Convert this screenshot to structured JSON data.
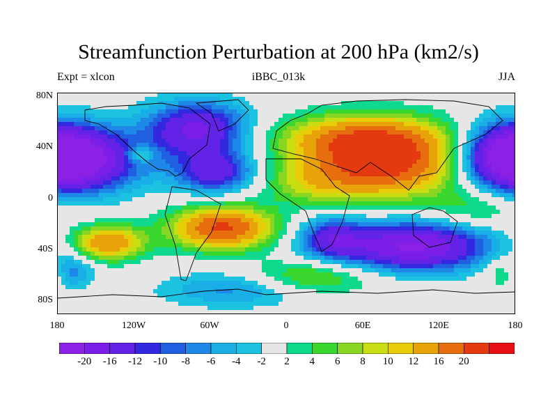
{
  "header": {
    "title": "Streamfunction Perturbation at 200 hPa (km2/s)",
    "left_label": "Expt = xlcon",
    "center_label": "iBBC_013k",
    "right_label": "JJA"
  },
  "map": {
    "y_ticks": [
      "80N",
      "40N",
      "0",
      "40S",
      "80S"
    ],
    "x_ticks": [
      "180",
      "120W",
      "60W",
      "0",
      "60E",
      "120E",
      "180"
    ],
    "background_color": "#e6e6e6"
  },
  "colorbar": {
    "colors": [
      "#8c21e6",
      "#7a1ee8",
      "#6323e6",
      "#3228e0",
      "#1f5fe0",
      "#1e88e6",
      "#1aaee6",
      "#1cc3e0",
      "#e6e6e6",
      "#0fd98c",
      "#3ad82e",
      "#88d622",
      "#c8dd12",
      "#e8cc0a",
      "#e8a20a",
      "#e66e0e",
      "#e33a12",
      "#e60f14"
    ],
    "labels": [
      "-20",
      "-16",
      "-12",
      "-10",
      "-8",
      "-6",
      "-4",
      "-2",
      "2",
      "4",
      "6",
      "8",
      "10",
      "12",
      "16",
      "20"
    ]
  },
  "chart_data": {
    "type": "heatmap",
    "title": "Streamfunction Perturbation at 200 hPa (km2/s)",
    "variable": "streamfunction perturbation",
    "units": "km2/s",
    "levels": [
      -20,
      -16,
      -12,
      -10,
      -8,
      -6,
      -4,
      -2,
      2,
      4,
      6,
      8,
      10,
      12,
      16,
      20
    ],
    "lon_range": [
      -180,
      180
    ],
    "lat_range": [
      -90,
      90
    ],
    "features": [
      {
        "lon": 75,
        "lat": 35,
        "amplitude": 24,
        "spread_lon": 45,
        "spread_lat": 20
      },
      {
        "lon": 55,
        "lat": 55,
        "amplitude": 9,
        "spread_lon": 45,
        "spread_lat": 12
      },
      {
        "lon": 20,
        "lat": 15,
        "amplitude": 5,
        "spread_lon": 30,
        "spread_lat": 12
      },
      {
        "lon": -165,
        "lat": 35,
        "amplitude": -21,
        "spread_lon": 35,
        "spread_lat": 18
      },
      {
        "lon": 175,
        "lat": 40,
        "amplitude": -16,
        "spread_lon": 25,
        "spread_lat": 18
      },
      {
        "lon": -70,
        "lat": 60,
        "amplitude": -17,
        "spread_lon": 28,
        "spread_lat": 16
      },
      {
        "lon": -55,
        "lat": 25,
        "amplitude": -14,
        "spread_lon": 22,
        "spread_lat": 12
      },
      {
        "lon": -115,
        "lat": 40,
        "amplitude": 7,
        "spread_lon": 8,
        "spread_lat": 5
      },
      {
        "lon": -50,
        "lat": -20,
        "amplitude": 21,
        "spread_lon": 28,
        "spread_lat": 12
      },
      {
        "lon": -140,
        "lat": -32,
        "amplitude": 16,
        "spread_lon": 20,
        "spread_lat": 10
      },
      {
        "lon": 100,
        "lat": -35,
        "amplitude": -21,
        "spread_lon": 42,
        "spread_lat": 14
      },
      {
        "lon": 35,
        "lat": -28,
        "amplitude": -11,
        "spread_lon": 18,
        "spread_lat": 12
      },
      {
        "lon": -175,
        "lat": -55,
        "amplitude": -12,
        "spread_lon": 14,
        "spread_lat": 10
      },
      {
        "lon": 175,
        "lat": -55,
        "amplitude": 12,
        "spread_lon": 12,
        "spread_lat": 10
      },
      {
        "lon": -40,
        "lat": -70,
        "amplitude": -7,
        "spread_lon": 40,
        "spread_lat": 10
      },
      {
        "lon": 20,
        "lat": -60,
        "amplitude": 8,
        "spread_lon": 35,
        "spread_lat": 10
      },
      {
        "lon": 150,
        "lat": -5,
        "amplitude": 5,
        "spread_lon": 25,
        "spread_lat": 12
      }
    ]
  }
}
